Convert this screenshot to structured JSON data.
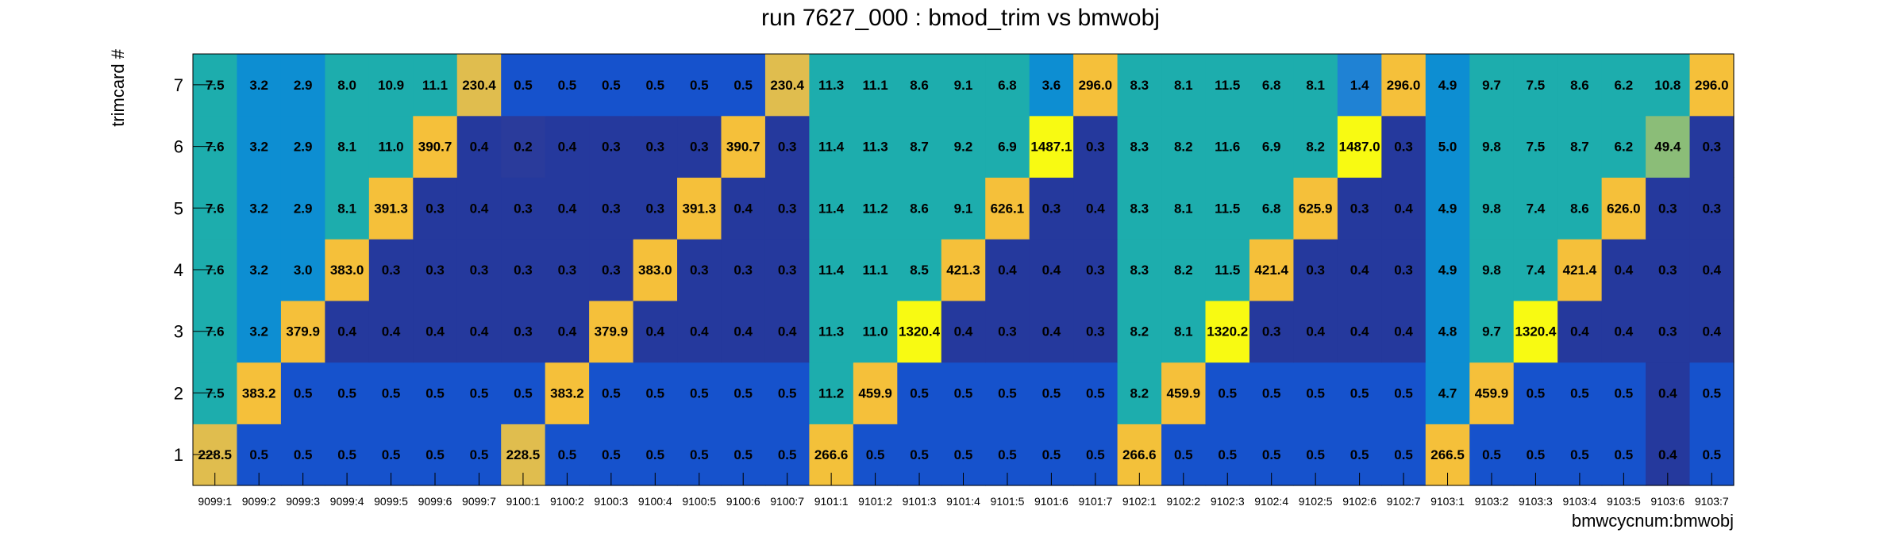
{
  "chart_data": {
    "type": "heatmap",
    "title": "run 7627_000 : bmod_trim vs bmwobj",
    "xlabel": "bmwcycnum:bmwobj",
    "ylabel": "trimcard #",
    "x_categories": [
      "9099:1",
      "9099:2",
      "9099:3",
      "9099:4",
      "9099:5",
      "9099:6",
      "9099:7",
      "9100:1",
      "9100:2",
      "9100:3",
      "9100:4",
      "9100:5",
      "9100:6",
      "9100:7",
      "9101:1",
      "9101:2",
      "9101:3",
      "9101:4",
      "9101:5",
      "9101:6",
      "9101:7",
      "9102:1",
      "9102:2",
      "9102:3",
      "9102:4",
      "9102:5",
      "9102:6",
      "9102:7",
      "9103:1",
      "9103:2",
      "9103:3",
      "9103:4",
      "9103:5",
      "9103:6",
      "9103:7"
    ],
    "y_categories": [
      "1",
      "2",
      "3",
      "4",
      "5",
      "6",
      "7"
    ],
    "values": [
      [
        "228.5",
        "0.5",
        "0.5",
        "0.5",
        "0.5",
        "0.5",
        "0.5",
        "228.5",
        "0.5",
        "0.5",
        "0.5",
        "0.5",
        "0.5",
        "0.5",
        "266.6",
        "0.5",
        "0.5",
        "0.5",
        "0.5",
        "0.5",
        "0.5",
        "266.6",
        "0.5",
        "0.5",
        "0.5",
        "0.5",
        "0.5",
        "0.5",
        "266.5",
        "0.5",
        "0.5",
        "0.5",
        "0.5",
        "0.4",
        "0.5"
      ],
      [
        "7.5",
        "383.2",
        "0.5",
        "0.5",
        "0.5",
        "0.5",
        "0.5",
        "0.5",
        "383.2",
        "0.5",
        "0.5",
        "0.5",
        "0.5",
        "0.5",
        "11.2",
        "459.9",
        "0.5",
        "0.5",
        "0.5",
        "0.5",
        "0.5",
        "8.2",
        "459.9",
        "0.5",
        "0.5",
        "0.5",
        "0.5",
        "0.5",
        "4.7",
        "459.9",
        "0.5",
        "0.5",
        "0.5",
        "0.4",
        "0.5"
      ],
      [
        "7.6",
        "3.2",
        "379.9",
        "0.4",
        "0.4",
        "0.4",
        "0.4",
        "0.3",
        "0.4",
        "379.9",
        "0.4",
        "0.4",
        "0.4",
        "0.4",
        "11.3",
        "11.0",
        "1320.4",
        "0.4",
        "0.3",
        "0.4",
        "0.3",
        "8.2",
        "8.1",
        "1320.2",
        "0.3",
        "0.4",
        "0.4",
        "0.4",
        "4.8",
        "9.7",
        "1320.4",
        "0.4",
        "0.4",
        "0.3",
        "0.4"
      ],
      [
        "7.6",
        "3.2",
        "3.0",
        "383.0",
        "0.3",
        "0.3",
        "0.3",
        "0.3",
        "0.3",
        "0.3",
        "383.0",
        "0.3",
        "0.3",
        "0.3",
        "11.4",
        "11.1",
        "8.5",
        "421.3",
        "0.4",
        "0.4",
        "0.3",
        "8.3",
        "8.2",
        "11.5",
        "421.4",
        "0.3",
        "0.4",
        "0.3",
        "4.9",
        "9.8",
        "7.4",
        "421.4",
        "0.4",
        "0.3",
        "0.4"
      ],
      [
        "7.6",
        "3.2",
        "2.9",
        "8.1",
        "391.3",
        "0.3",
        "0.4",
        "0.3",
        "0.4",
        "0.3",
        "0.3",
        "391.3",
        "0.4",
        "0.3",
        "11.4",
        "11.2",
        "8.6",
        "9.1",
        "626.1",
        "0.3",
        "0.4",
        "8.3",
        "8.1",
        "11.5",
        "6.8",
        "625.9",
        "0.3",
        "0.4",
        "4.9",
        "9.8",
        "7.4",
        "8.6",
        "626.0",
        "0.3",
        "0.3"
      ],
      [
        "7.6",
        "3.2",
        "2.9",
        "8.1",
        "11.0",
        "390.7",
        "0.4",
        "0.2",
        "0.4",
        "0.3",
        "0.3",
        "0.3",
        "390.7",
        "0.3",
        "11.4",
        "11.3",
        "8.7",
        "9.2",
        "6.9",
        "1487.1",
        "0.3",
        "8.3",
        "8.2",
        "11.6",
        "6.9",
        "8.2",
        "1487.0",
        "0.3",
        "5.0",
        "9.8",
        "7.5",
        "8.7",
        "6.2",
        "49.4",
        "0.3"
      ],
      [
        "7.5",
        "3.2",
        "2.9",
        "8.0",
        "10.9",
        "11.1",
        "230.4",
        "0.5",
        "0.5",
        "0.5",
        "0.5",
        "0.5",
        "0.5",
        "230.4",
        "11.3",
        "11.1",
        "8.6",
        "9.1",
        "6.8",
        "3.6",
        "296.0",
        "8.3",
        "8.1",
        "11.5",
        "6.8",
        "8.1",
        "1.4",
        "296.0",
        "4.9",
        "9.7",
        "7.5",
        "8.6",
        "6.2",
        "10.8",
        "296.0"
      ]
    ],
    "color_scale": {
      "stops": [
        {
          "max": 0.25,
          "color": "#2a3b9b"
        },
        {
          "max": 0.45,
          "color": "#25399d"
        },
        {
          "max": 1.0,
          "color": "#1652cc"
        },
        {
          "max": 6.0,
          "color": "#0d8ed2"
        },
        {
          "max": 15.0,
          "color": "#1dadad"
        },
        {
          "max": 100.0,
          "color": "#8bbd78"
        },
        {
          "max": 1000.0,
          "color": "#f5c03a"
        },
        {
          "max": 100000.0,
          "color": "#f8fa12"
        }
      ],
      "special": [
        {
          "value": "228.5",
          "color": "#e0bd4e"
        },
        {
          "value": "230.4",
          "color": "#e0bd4e"
        },
        {
          "value": "266.6",
          "color": "#f3c13a"
        },
        {
          "value": "1.4",
          "color": "#1f82d4"
        },
        {
          "value": "0.2",
          "color": "#2a3b9b"
        }
      ]
    },
    "row_overrides": {
      "note_free": true
    },
    "grid": false,
    "legend": "none"
  }
}
